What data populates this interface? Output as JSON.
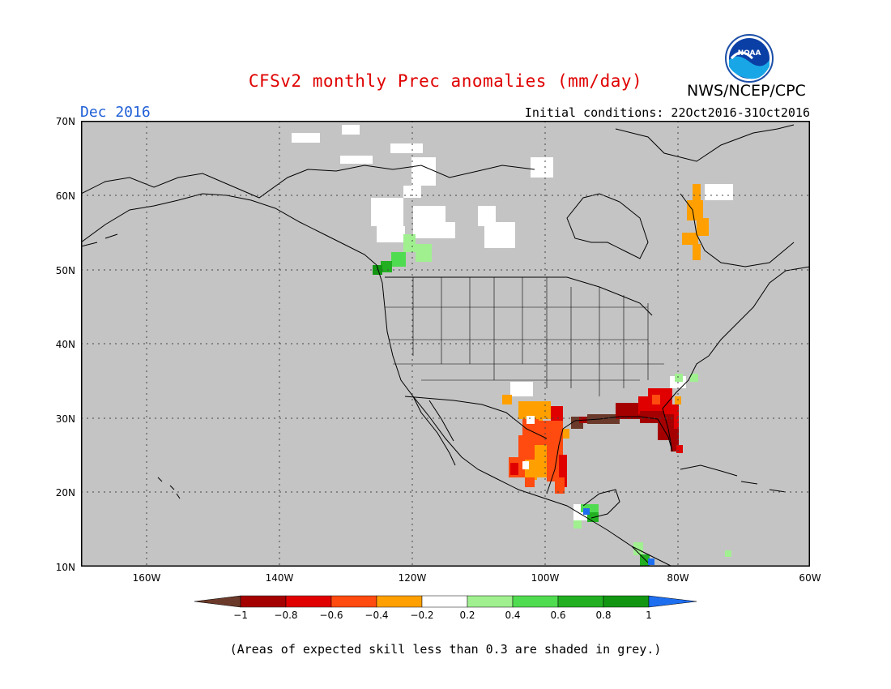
{
  "header": {
    "title": "CFSv2 monthly Prec anomalies (mm/day)",
    "month": "Dec 2016",
    "initial_conditions": "Initial conditions: 22Oct2016-31Oct2016",
    "agency": "NWS/NCEP/CPC",
    "logo_text": "NOAA"
  },
  "map": {
    "lat_labels": [
      "70N",
      "60N",
      "50N",
      "40N",
      "30N",
      "20N",
      "10N"
    ],
    "lon_labels": [
      "160W",
      "140W",
      "120W",
      "100W",
      "80W",
      "60W"
    ],
    "lat_range": [
      10,
      70
    ],
    "lon_range": [
      -171,
      -60
    ],
    "grid": true,
    "background_color": "#c4c4c4"
  },
  "colorbar": {
    "labels": [
      "−1",
      "−0.8",
      "−0.6",
      "−0.4",
      "−0.2",
      "0.2",
      "0.4",
      "0.6",
      "0.8",
      "1"
    ],
    "colors": [
      "#6b3a2a",
      "#a50000",
      "#e00000",
      "#ff4a10",
      "#ffa000",
      "#ffffff",
      "#a0f090",
      "#50dc50",
      "#22b022",
      "#129612",
      "#1e6ef0"
    ]
  },
  "footer": {
    "note": "(Areas of expected skill less than 0.3 are shaded in grey.)"
  }
}
